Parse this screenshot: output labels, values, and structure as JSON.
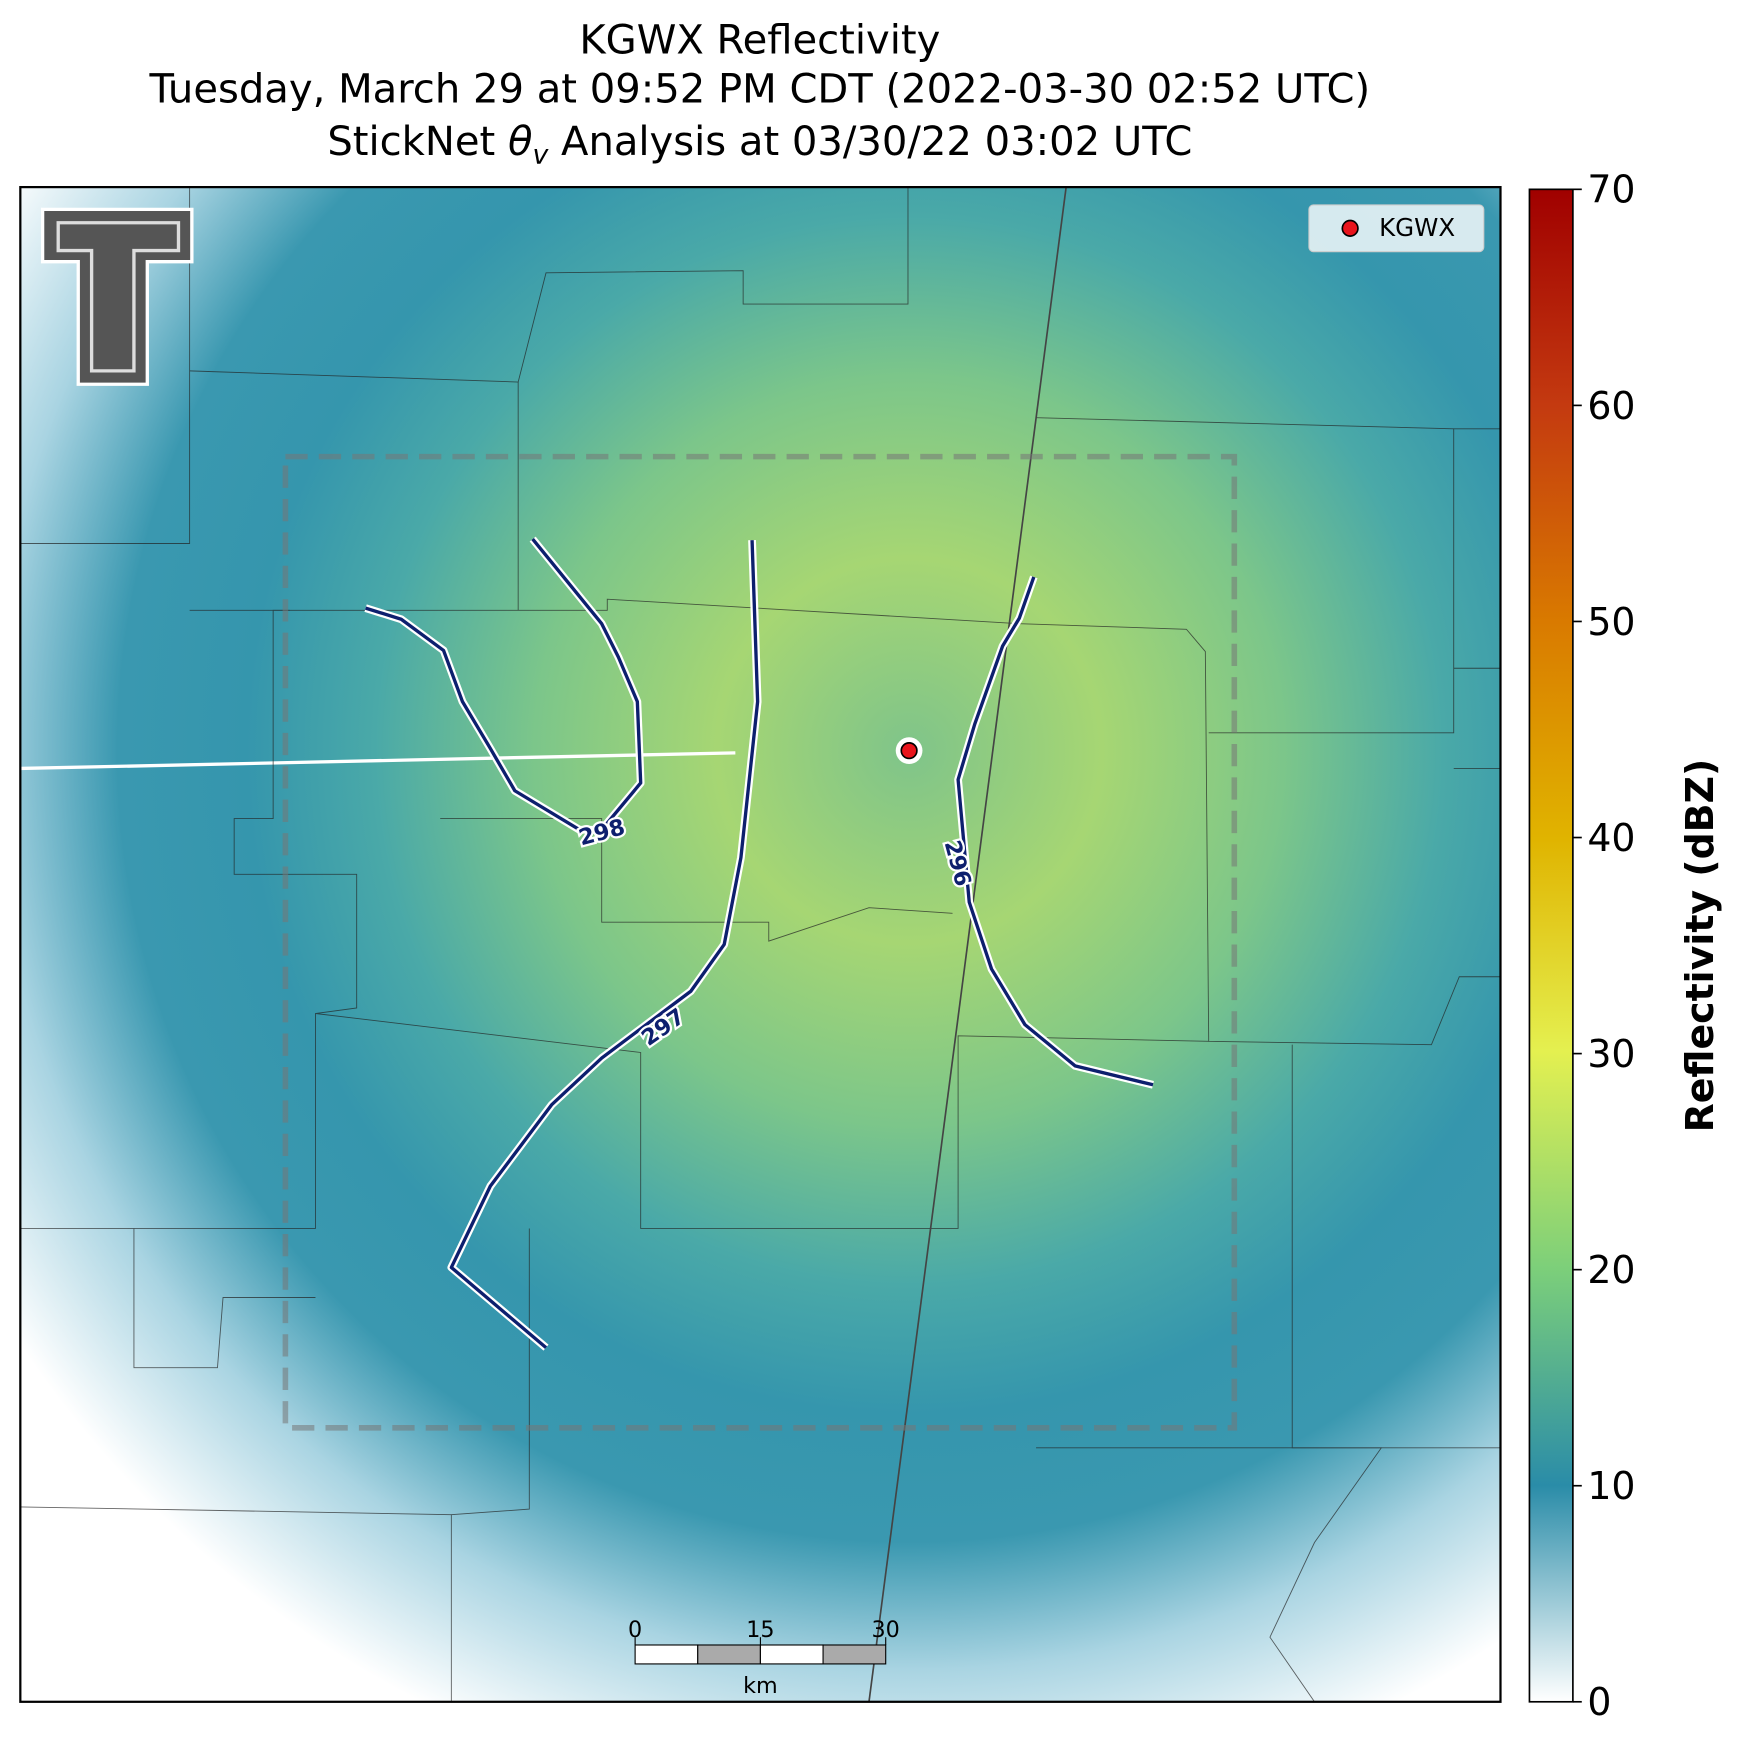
{
  "header": {
    "title": "KGWX Reflectivity",
    "subtitle": "Tuesday, March 29 at 09:52 PM CDT (2022-03-30 02:52 UTC)",
    "analysis_prefix": "StickNet ",
    "analysis_symbol": "θ",
    "analysis_subscript": "v",
    "analysis_suffix": " Analysis at 03/30/22 03:02 UTC"
  },
  "legend": {
    "label": "KGWX"
  },
  "contours": [
    {
      "level": 298
    },
    {
      "level": 297
    },
    {
      "level": 296
    }
  ],
  "scale_bar": {
    "ticks": [
      0,
      15,
      30
    ],
    "unit": "km"
  },
  "colorbar": {
    "label": "Reflectivity (dBZ)",
    "lim": [
      0,
      70
    ],
    "ticks": [
      0,
      10,
      20,
      30,
      40,
      50,
      60,
      70
    ]
  }
}
